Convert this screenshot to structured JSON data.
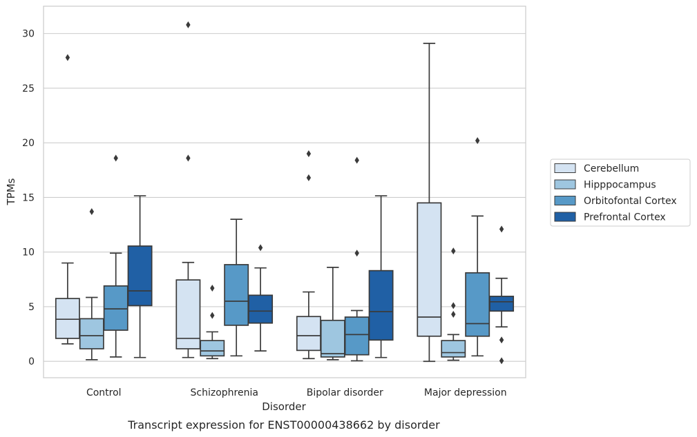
{
  "caption": "Transcript expression for ENST00000438662 by disorder",
  "chart_data": {
    "type": "boxplot",
    "xlabel": "Disorder",
    "ylabel": "TPMs",
    "ylim": [
      -1.5,
      32.5
    ],
    "yticks": [
      0,
      5,
      10,
      15,
      20,
      25,
      30
    ],
    "grid": "horizontal",
    "legend_position": "right",
    "categories": [
      "Control",
      "Schizophrenia",
      "Bipolar disorder",
      "Major depression"
    ],
    "series": [
      {
        "name": "Cerebellum",
        "color": "#d4e3f2",
        "boxes": [
          {
            "whislo": 1.6,
            "q1": 2.1,
            "med": 3.85,
            "q3": 5.75,
            "whishi": 9.0,
            "fliers": [
              27.8
            ]
          },
          {
            "whislo": 0.35,
            "q1": 1.15,
            "med": 2.1,
            "q3": 7.45,
            "whishi": 9.05,
            "fliers": [
              30.8,
              18.6
            ]
          },
          {
            "whislo": 0.25,
            "q1": 1.0,
            "med": 2.35,
            "q3": 4.1,
            "whishi": 6.35,
            "fliers": [
              19.0,
              16.8
            ]
          },
          {
            "whislo": 0.0,
            "q1": 2.3,
            "med": 4.05,
            "q3": 14.5,
            "whishi": 29.1,
            "fliers": []
          }
        ]
      },
      {
        "name": "Hipppocampus",
        "color": "#9ec6e0",
        "boxes": [
          {
            "whislo": 0.15,
            "q1": 1.15,
            "med": 2.35,
            "q3": 3.9,
            "whishi": 5.85,
            "fliers": [
              13.7
            ]
          },
          {
            "whislo": 0.25,
            "q1": 0.5,
            "med": 0.95,
            "q3": 1.9,
            "whishi": 2.7,
            "fliers": [
              6.7,
              4.2
            ]
          },
          {
            "whislo": 0.15,
            "q1": 0.4,
            "med": 0.7,
            "q3": 3.75,
            "whishi": 8.6,
            "fliers": []
          },
          {
            "whislo": 0.1,
            "q1": 0.4,
            "med": 0.8,
            "q3": 1.9,
            "whishi": 2.45,
            "fliers": [
              10.1,
              5.1,
              4.3
            ]
          }
        ]
      },
      {
        "name": "Orbitofontal Cortex",
        "color": "#5799c7",
        "boxes": [
          {
            "whislo": 0.4,
            "q1": 2.85,
            "med": 4.8,
            "q3": 6.9,
            "whishi": 9.9,
            "fliers": [
              18.6
            ]
          },
          {
            "whislo": 0.5,
            "q1": 3.3,
            "med": 5.5,
            "q3": 8.85,
            "whishi": 13.0,
            "fliers": []
          },
          {
            "whislo": 0.05,
            "q1": 0.6,
            "med": 2.45,
            "q3": 4.05,
            "whishi": 4.65,
            "fliers": [
              18.4,
              9.9
            ]
          },
          {
            "whislo": 0.5,
            "q1": 2.3,
            "med": 3.45,
            "q3": 8.1,
            "whishi": 13.3,
            "fliers": [
              20.2
            ]
          }
        ]
      },
      {
        "name": "Prefrontal Cortex",
        "color": "#2060a5",
        "boxes": [
          {
            "whislo": 0.35,
            "q1": 5.1,
            "med": 6.45,
            "q3": 10.55,
            "whishi": 15.15,
            "fliers": []
          },
          {
            "whislo": 0.95,
            "q1": 3.5,
            "med": 4.6,
            "q3": 6.05,
            "whishi": 8.55,
            "fliers": [
              10.4
            ]
          },
          {
            "whislo": 0.35,
            "q1": 1.95,
            "med": 4.55,
            "q3": 8.3,
            "whishi": 15.15,
            "fliers": []
          },
          {
            "whislo": 3.15,
            "q1": 4.6,
            "med": 5.45,
            "q3": 5.95,
            "whishi": 7.6,
            "fliers": [
              12.1,
              1.95,
              0.05
            ]
          }
        ]
      }
    ]
  }
}
